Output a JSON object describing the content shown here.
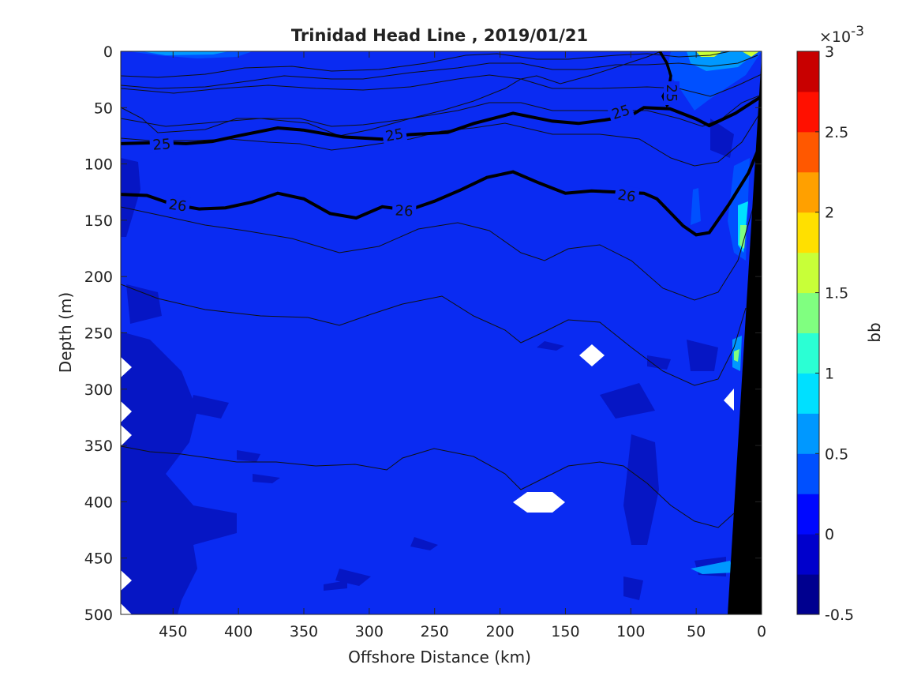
{
  "chart_data": {
    "type": "heatmap",
    "title": "Trinidad Head Line , 2019/01/21",
    "xlabel": "Offshore Distance (km)",
    "ylabel": "Depth (m)",
    "xlim": [
      490,
      0
    ],
    "ylim": [
      0,
      500
    ],
    "x_ticks": [
      "450",
      "400",
      "350",
      "300",
      "250",
      "200",
      "150",
      "100",
      "50",
      "0"
    ],
    "y_ticks": [
      "0",
      "50",
      "100",
      "150",
      "200",
      "250",
      "300",
      "350",
      "400",
      "450",
      "500"
    ],
    "colorbar": {
      "label": "bb",
      "exponent_label": "×10",
      "exponent": "-3",
      "range": [
        -0.5,
        3
      ],
      "tick_labels": [
        "3",
        "2.5",
        "2",
        "1.5",
        "1",
        "0.5",
        "0",
        "-0.5"
      ],
      "colors": [
        "#00008F",
        "#0000CC",
        "#0008FF",
        "#0050FF",
        "#0098FF",
        "#00E0FF",
        "#2BFFD4",
        "#80FF80",
        "#C8FF38",
        "#FFE000",
        "#FFA000",
        "#FF5800",
        "#FF1000",
        "#C80000"
      ]
    },
    "density_contours": [
      {
        "label": "25",
        "points": [
          [
            490,
            82
          ],
          [
            460,
            81
          ],
          [
            440,
            82
          ],
          [
            420,
            80
          ],
          [
            400,
            75
          ],
          [
            370,
            68
          ],
          [
            350,
            70
          ],
          [
            320,
            76
          ],
          [
            290,
            78
          ],
          [
            270,
            74
          ],
          [
            240,
            72
          ],
          [
            220,
            64
          ],
          [
            190,
            55
          ],
          [
            160,
            62
          ],
          [
            140,
            64
          ],
          [
            120,
            61
          ],
          [
            100,
            57
          ],
          [
            90,
            50
          ],
          [
            70,
            51
          ],
          [
            50,
            60
          ],
          [
            40,
            66
          ],
          [
            20,
            55
          ],
          [
            0,
            40
          ]
        ]
      },
      {
        "label": "26",
        "points": [
          [
            490,
            127
          ],
          [
            470,
            128
          ],
          [
            450,
            136
          ],
          [
            430,
            140
          ],
          [
            410,
            139
          ],
          [
            390,
            134
          ],
          [
            370,
            126
          ],
          [
            350,
            131
          ],
          [
            330,
            144
          ],
          [
            310,
            148
          ],
          [
            290,
            138
          ],
          [
            270,
            141
          ],
          [
            250,
            133
          ],
          [
            230,
            123
          ],
          [
            210,
            112
          ],
          [
            190,
            107
          ],
          [
            170,
            117
          ],
          [
            150,
            126
          ],
          [
            130,
            124
          ],
          [
            110,
            125
          ],
          [
            90,
            126
          ],
          [
            80,
            131
          ],
          [
            70,
            143
          ],
          [
            60,
            155
          ],
          [
            50,
            163
          ],
          [
            40,
            161
          ],
          [
            25,
            136
          ],
          [
            10,
            108
          ],
          [
            0,
            80
          ]
        ]
      }
    ]
  }
}
